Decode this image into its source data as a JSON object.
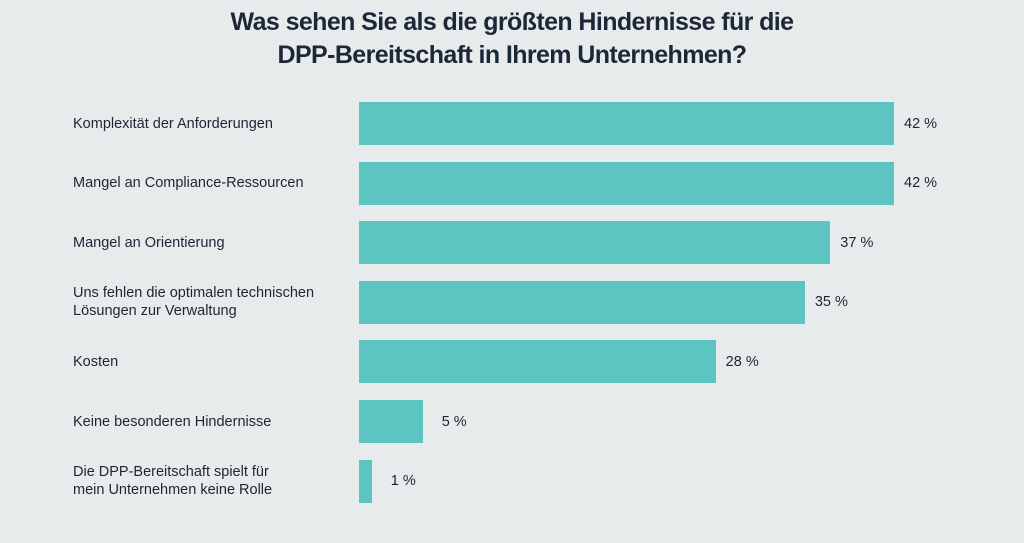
{
  "chart_data": {
    "type": "bar",
    "orientation": "horizontal",
    "title": [
      "Was sehen Sie als die größten Hindernisse für die",
      "DPP-Bereitschaft in Ihrem Unternehmen?"
    ],
    "categories": [
      [
        "Komplexität der Anforderungen"
      ],
      [
        "Mangel an Compliance-Ressourcen"
      ],
      [
        "Mangel an Orientierung"
      ],
      [
        "Uns fehlen die optimalen technischen",
        "Lösungen zur Verwaltung"
      ],
      [
        "Kosten"
      ],
      [
        "Keine besonderen Hindernisse"
      ],
      [
        "Die DPP-Bereitschaft spielt für",
        "mein Unternehmen keine Rolle"
      ]
    ],
    "values": [
      42,
      42,
      37,
      35,
      28,
      5,
      1
    ],
    "value_labels": [
      "42 %",
      "42 %",
      "37 %",
      "35 %",
      "28 %",
      "5 %",
      "1 %"
    ],
    "unit": "%",
    "xlim": [
      0,
      42
    ],
    "grid": false,
    "bar_color": "#5cc4c1",
    "background": "#e8ebeb"
  }
}
